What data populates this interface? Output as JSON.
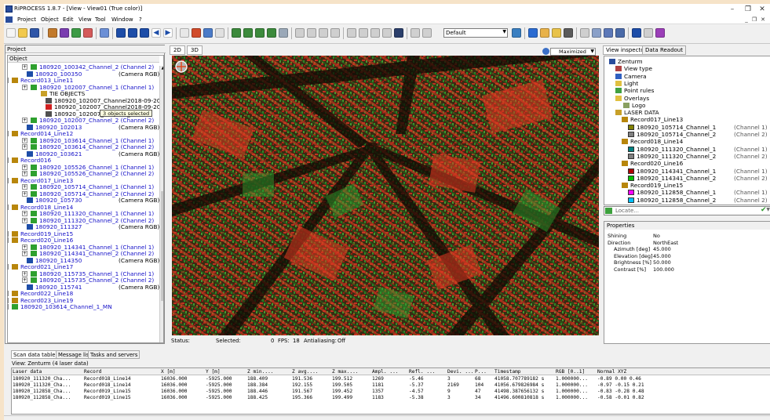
{
  "window": {
    "title": "RiPROCESS 1.8.7 - [View - View01 (True color)]"
  },
  "menu": [
    "Project",
    "Object",
    "Edit",
    "View",
    "Tool",
    "Window",
    "?"
  ],
  "toolbar": {
    "combo_value": "Default"
  },
  "project_panel": {
    "title": "Project",
    "tree_header": "Object",
    "tooltip": "3 objects selected",
    "items": [
      {
        "label": "180920_100342_Channel_2 (Channel 2)",
        "comment": "",
        "kind": "channel",
        "color": "blue"
      },
      {
        "label": "180920_100350",
        "comment": "(Camera RGB)",
        "kind": "camera",
        "color": "blue"
      },
      {
        "label": "Record013_Line11",
        "comment": "",
        "kind": "record",
        "color": "blue"
      },
      {
        "label": "180920_102007_Channel_1 (Channel 1)",
        "comment": "",
        "kind": "channel",
        "color": "blue"
      },
      {
        "label": "TIE OBJECTS",
        "comment": "",
        "kind": "tie",
        "color": "black"
      },
      {
        "label": "180920_102007_Channel2018-09-20",
        "comment": "",
        "kind": "file",
        "color": "black"
      },
      {
        "label": "180920_102007_Channel2018-09-20",
        "comment": "",
        "kind": "file2",
        "color": "black"
      },
      {
        "label": "180920_102007_Channel_1",
        "comment": "",
        "kind": "file",
        "color": "black"
      },
      {
        "label": "180920_102007_Channel_2 (Channel 2)",
        "comment": "",
        "kind": "channel",
        "color": "blue"
      },
      {
        "label": "180920_102013",
        "comment": "(Camera RGB)",
        "kind": "camera",
        "color": "blue"
      },
      {
        "label": "Record014_Line12",
        "comment": "",
        "kind": "record",
        "color": "blue"
      },
      {
        "label": "180920_103614_Channel_1 (Channel 1)",
        "comment": "",
        "kind": "channel",
        "color": "blue"
      },
      {
        "label": "180920_103614_Channel_2 (Channel 2)",
        "comment": "",
        "kind": "channel",
        "color": "blue"
      },
      {
        "label": "180920_103621",
        "comment": "(Camera RGB)",
        "kind": "camera",
        "color": "blue"
      },
      {
        "label": "Record016",
        "comment": "",
        "kind": "record",
        "color": "blue"
      },
      {
        "label": "180920_105526_Channel_1 (Channel 1)",
        "comment": "",
        "kind": "channel",
        "color": "blue"
      },
      {
        "label": "180920_105526_Channel_2 (Channel 2)",
        "comment": "",
        "kind": "channel",
        "color": "blue"
      },
      {
        "label": "Record017_Line13",
        "comment": "",
        "kind": "record",
        "color": "blue"
      },
      {
        "label": "180920_105714_Channel_1 (Channel 1)",
        "comment": "",
        "kind": "channel",
        "color": "blue"
      },
      {
        "label": "180920_105714_Channel_2 (Channel 2)",
        "comment": "",
        "kind": "channel",
        "color": "blue"
      },
      {
        "label": "180920_105730",
        "comment": "(Camera RGB)",
        "kind": "camera",
        "color": "blue"
      },
      {
        "label": "Record018_Line14",
        "comment": "",
        "kind": "record",
        "color": "blue"
      },
      {
        "label": "180920_111320_Channel_1 (Channel 1)",
        "comment": "",
        "kind": "channel",
        "color": "blue"
      },
      {
        "label": "180920_111320_Channel_2 (Channel 2)",
        "comment": "",
        "kind": "channel",
        "color": "blue"
      },
      {
        "label": "180920_111327",
        "comment": "(Camera RGB)",
        "kind": "camera",
        "color": "blue"
      },
      {
        "label": "Record019_Line15",
        "comment": "",
        "kind": "record",
        "color": "blue"
      },
      {
        "label": "Record020_Line16",
        "comment": "",
        "kind": "record",
        "color": "blue"
      },
      {
        "label": "180920_114341_Channel_1 (Channel 1)",
        "comment": "",
        "kind": "channel",
        "color": "blue"
      },
      {
        "label": "180920_114341_Channel_2 (Channel 2)",
        "comment": "",
        "kind": "channel",
        "color": "blue"
      },
      {
        "label": "180920_114350",
        "comment": "(Camera RGB)",
        "kind": "camera",
        "color": "blue"
      },
      {
        "label": "Record021_Line17",
        "comment": "",
        "kind": "record",
        "color": "blue"
      },
      {
        "label": "180920_115735_Channel_1 (Channel 1)",
        "comment": "",
        "kind": "channel",
        "color": "blue"
      },
      {
        "label": "180920_115735_Channel_2 (Channel 2)",
        "comment": "",
        "kind": "channel",
        "color": "blue"
      },
      {
        "label": "180920_115741",
        "comment": "(Camera RGB)",
        "kind": "camera",
        "color": "blue"
      },
      {
        "label": "Record022_Line18",
        "comment": "",
        "kind": "record",
        "color": "blue"
      },
      {
        "label": "Record023_Line19",
        "comment": "",
        "kind": "record",
        "color": "blue"
      },
      {
        "label": "180920_103614_Channel_1_MN",
        "comment": "",
        "kind": "channel",
        "color": "blue"
      }
    ]
  },
  "view": {
    "tabs": [
      "2D",
      "3D"
    ],
    "maximize_label": "Maximized",
    "status": {
      "status_label": "Status:",
      "selected_label": "Selected:",
      "selected_value": "0",
      "fps_label": "FPS:",
      "fps_value": "18",
      "antialiasing_label": "Antialiasing:",
      "antialiasing_value": "Off"
    }
  },
  "inspector": {
    "tabs": [
      "View inspector",
      "Data Readout"
    ],
    "items": [
      {
        "label": "Zenturm",
        "comment": "",
        "swatch": ""
      },
      {
        "label": "View type",
        "comment": "",
        "swatch": ""
      },
      {
        "label": "Camera",
        "comment": "",
        "swatch": ""
      },
      {
        "label": "Light",
        "comment": "",
        "swatch": ""
      },
      {
        "label": "Point rules",
        "comment": "",
        "swatch": ""
      },
      {
        "label": "Overlays",
        "comment": "",
        "swatch": ""
      },
      {
        "label": "Logo",
        "comment": "",
        "swatch": ""
      },
      {
        "label": "LASER DATA",
        "comment": "",
        "swatch": ""
      },
      {
        "label": "Record017_Line13",
        "comment": "",
        "swatch": ""
      },
      {
        "label": "180920_105714_Channel_1",
        "comment": "(Channel 1)",
        "swatch": "#808000"
      },
      {
        "label": "180920_105714_Channel_2",
        "comment": "(Channel 2)",
        "swatch": "#808080"
      },
      {
        "label": "Record018_Line14",
        "comment": "",
        "swatch": ""
      },
      {
        "label": "180920_111320_Channel_1",
        "comment": "(Channel 1)",
        "swatch": "#008080"
      },
      {
        "label": "180920_111320_Channel_2",
        "comment": "(Channel 2)",
        "swatch": "#808080"
      },
      {
        "label": "Record020_Line16",
        "comment": "",
        "swatch": ""
      },
      {
        "label": "180920_114341_Channel_1",
        "comment": "(Channel 1)",
        "swatch": "#b00000"
      },
      {
        "label": "180920_114341_Channel_2",
        "comment": "(Channel 2)",
        "swatch": "#00c000"
      },
      {
        "label": "Record019_Line15",
        "comment": "",
        "swatch": ""
      },
      {
        "label": "180920_112858_Channel_1",
        "comment": "(Channel 1)",
        "swatch": "#ff00ff"
      },
      {
        "label": "180920_112858_Channel_2",
        "comment": "(Channel 2)",
        "swatch": "#00c0ff"
      }
    ],
    "locate_placeholder": "Locate...",
    "properties_title": "Properties",
    "properties": [
      {
        "key": "Shining",
        "value": "No"
      },
      {
        "key": "Direction",
        "value": "NorthEast"
      },
      {
        "key": "Azimuth [deg]",
        "value": "45.000"
      },
      {
        "key": "Elevation [deg]",
        "value": "45.000"
      },
      {
        "key": "Brightness [%]",
        "value": "50.000"
      },
      {
        "key": "Contrast [%]",
        "value": "100.000"
      }
    ]
  },
  "bottom": {
    "tabs": [
      "Scan data table",
      "Message list",
      "Tasks and servers"
    ],
    "view_line": "View: Zenturm (4 laser data)",
    "columns": [
      "Laser data",
      "Record",
      "X [m]",
      "Y [m]",
      "Z min....",
      "Z avg....",
      "Z max....",
      "Ampl. ...",
      "Refl. ...",
      "Devi. ...",
      "P...",
      "Timestamp",
      "RGB [0..1]",
      "Normal XYZ"
    ],
    "rows": [
      [
        "180920_111320_Cha...",
        "Record018_Line14",
        "16036.000",
        "-5925.000",
        "188.409",
        "191.536",
        "199.512",
        "1269",
        "-5.46",
        "3",
        "68",
        "41058.707789182 s",
        "1.000000...",
        "-0.89  0.00  0.46"
      ],
      [
        "180920_111320_Cha...",
        "Record018_Line14",
        "16036.000",
        "-5925.000",
        "188.384",
        "192.155",
        "199.505",
        "1181",
        "-5.37",
        "2169",
        "104",
        "41056.679826984 s",
        "1.000000...",
        "-0.97 -0.15  0.21"
      ],
      [
        "180920_112858_Cha...",
        "Record019_Line15",
        "16036.000",
        "-5925.000",
        "188.446",
        "191.567",
        "199.452",
        "1357",
        "-4.57",
        "9",
        "47",
        "41498.387656132 s",
        "1.000000...",
        "-0.83 -0.28  0.48"
      ],
      [
        "180920_112858_Cha...",
        "Record019_Line15",
        "16036.000",
        "-5925.000",
        "188.425",
        "195.366",
        "199.499",
        "1183",
        "-5.38",
        "3",
        "34",
        "41496.600810818 s",
        "1.000000...",
        "-0.58 -0.01  0.82"
      ]
    ]
  }
}
